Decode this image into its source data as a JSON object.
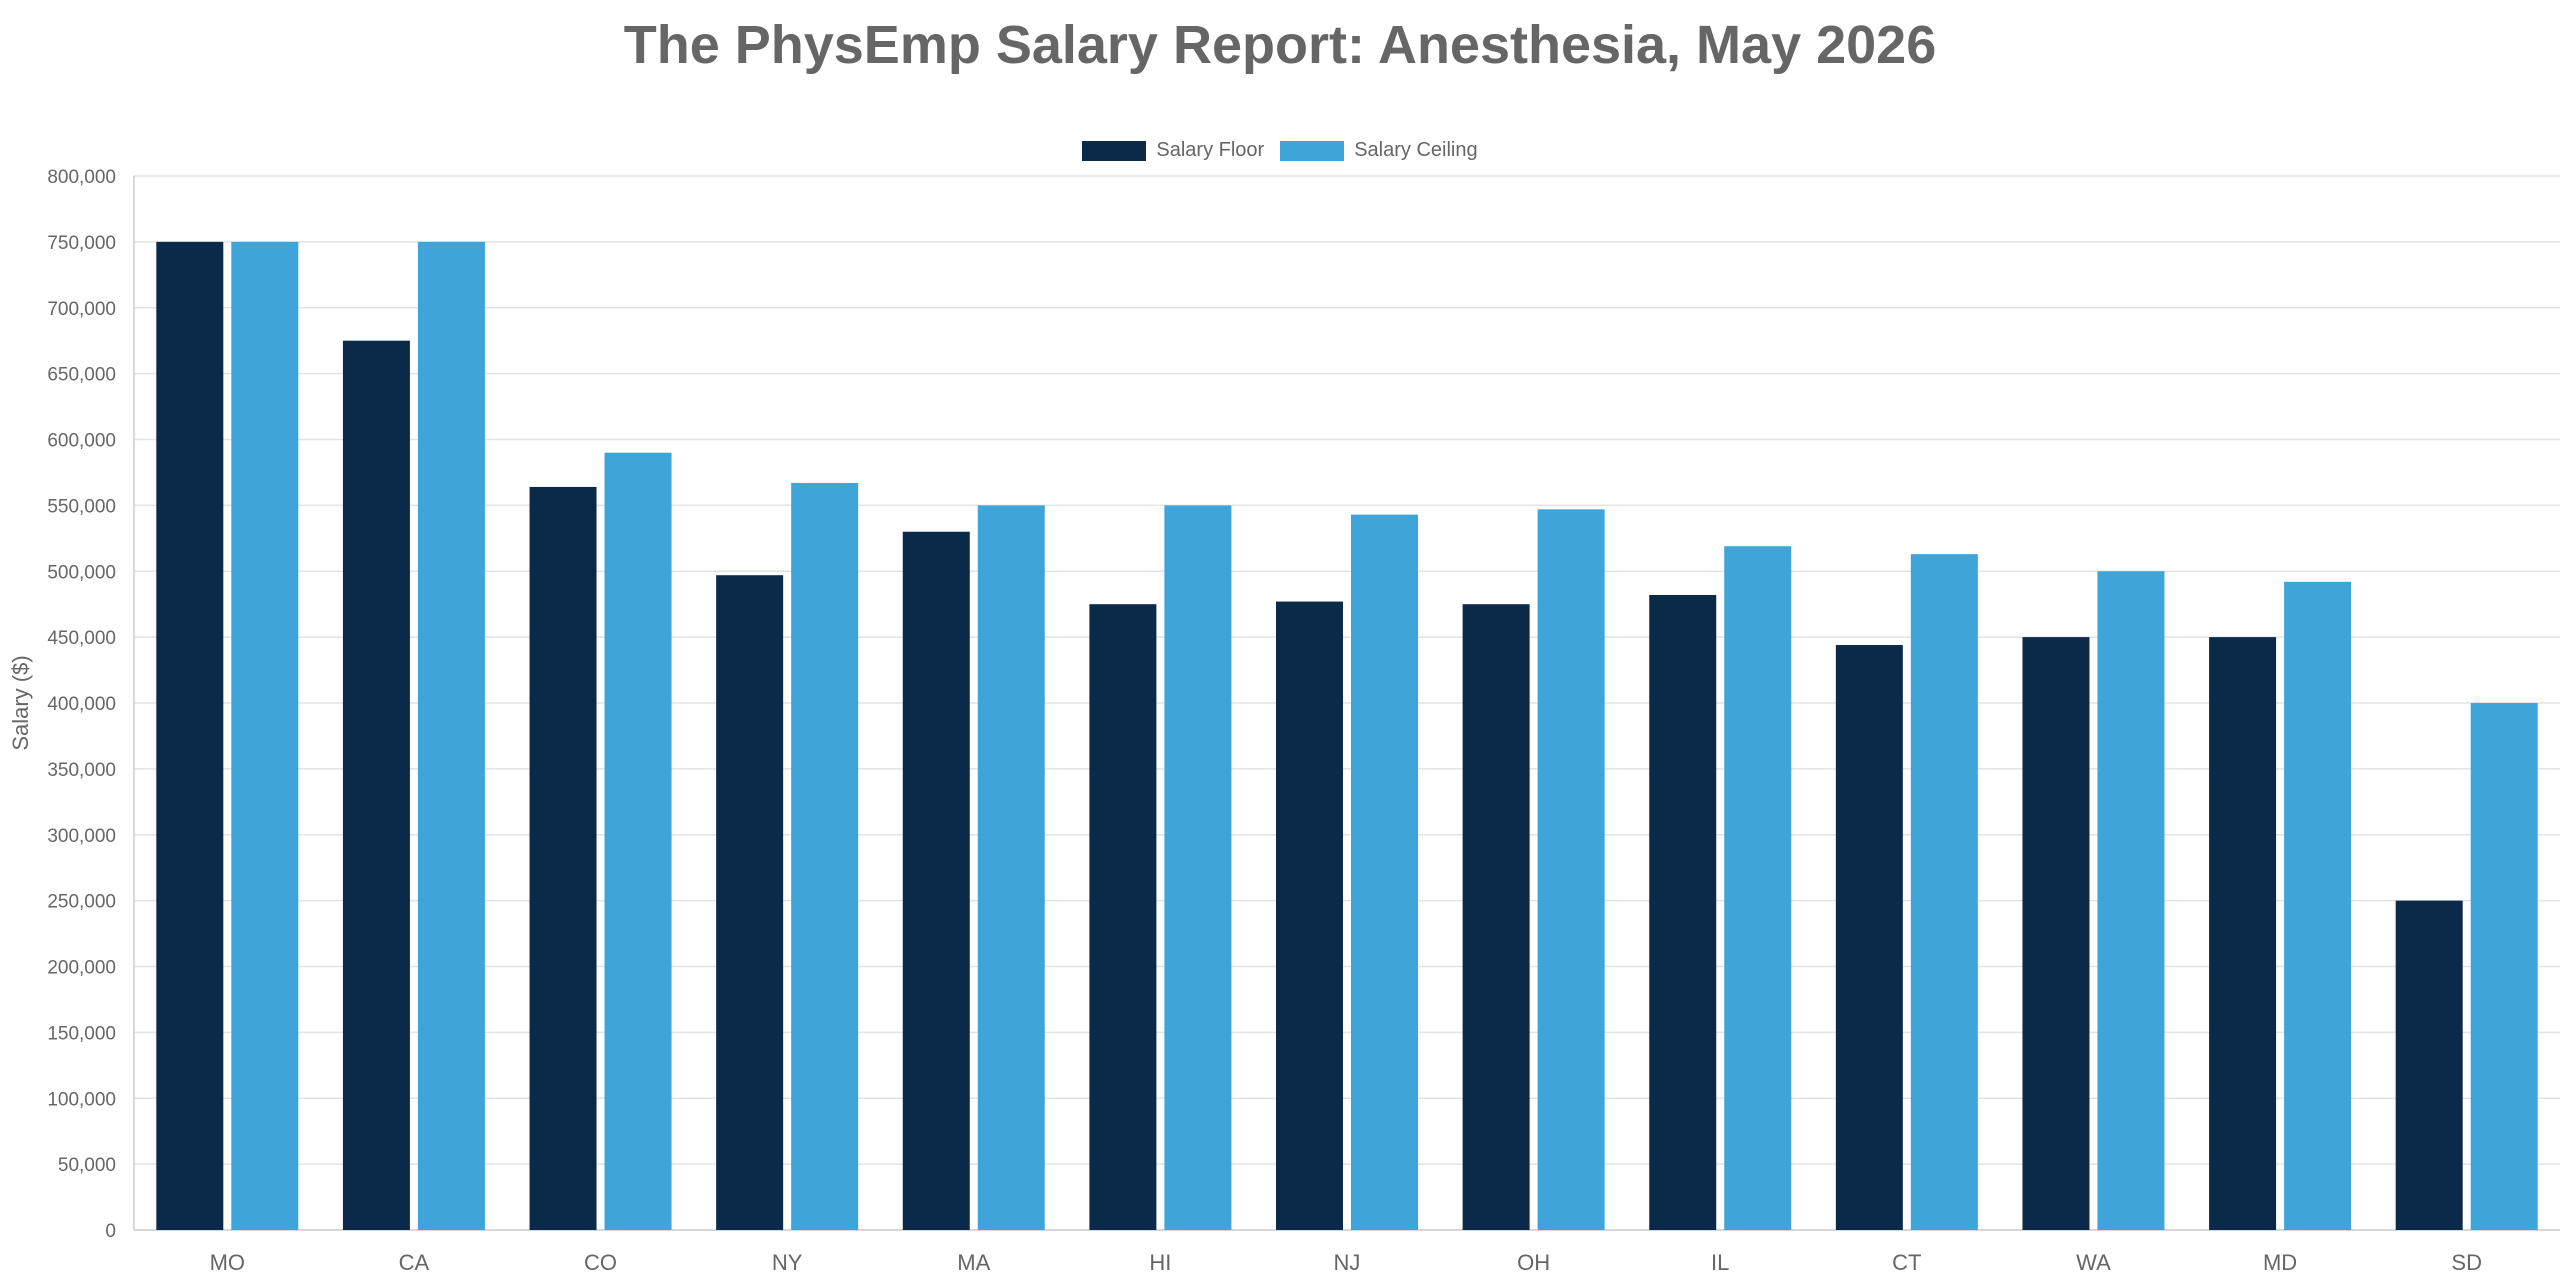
{
  "chart_data": {
    "type": "bar",
    "title": "The PhysEmp Salary Report: Anesthesia, May 2026",
    "xlabel": "",
    "ylabel": "Salary ($)",
    "ylim": [
      0,
      800000
    ],
    "ytick_step": 50000,
    "grid": true,
    "legend_position": "top-center",
    "categories": [
      "MO",
      "CA",
      "CO",
      "NY",
      "MA",
      "HI",
      "NJ",
      "OH",
      "IL",
      "CT",
      "WA",
      "MD",
      "SD"
    ],
    "series": [
      {
        "name": "Salary Floor",
        "color": "#0b2a4a",
        "values": [
          750000,
          675000,
          564000,
          497000,
          530000,
          475000,
          477000,
          475000,
          482000,
          444000,
          450000,
          450000,
          250000
        ]
      },
      {
        "name": "Salary Ceiling",
        "color": "#3fa5d8",
        "values": [
          750000,
          750000,
          590000,
          567000,
          550000,
          550000,
          543000,
          547000,
          519000,
          513000,
          500000,
          492000,
          400000
        ]
      }
    ]
  }
}
